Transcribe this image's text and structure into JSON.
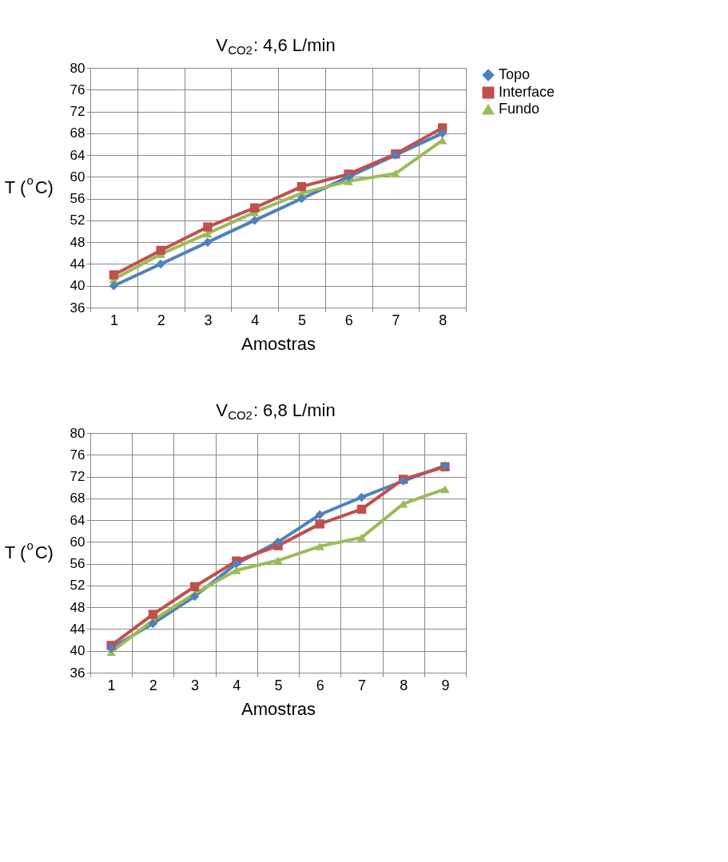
{
  "chart_data": [
    {
      "type": "line",
      "title": "V$_{CO2}$: 4,6 L/min",
      "xlabel": "Amostras",
      "ylabel": "T ($^{o}$C)",
      "categories": [
        "1",
        "2",
        "3",
        "4",
        "5",
        "6",
        "7",
        "8"
      ],
      "ylim": [
        36,
        80
      ],
      "yticks": [
        36,
        40,
        44,
        48,
        52,
        56,
        60,
        64,
        68,
        72,
        76,
        80
      ],
      "grid": true,
      "legend": "right",
      "line_style": "solid",
      "series": [
        {
          "name": "Topo",
          "color": "#4f81bd",
          "marker": "diamond",
          "values": [
            40,
            44,
            48,
            52,
            56,
            60,
            64,
            68
          ]
        },
        {
          "name": "Interface",
          "color": "#c0504d",
          "marker": "square",
          "values": [
            42,
            46.5,
            50.8,
            54.3,
            58.2,
            60.5,
            64.2,
            69
          ]
        },
        {
          "name": "Fundo",
          "color": "#9bbb59",
          "marker": "triangle",
          "values": [
            41.2,
            45.8,
            49.6,
            53.5,
            57,
            59.2,
            60.6,
            66.7
          ]
        }
      ]
    },
    {
      "type": "line",
      "title": "V$_{CO2}$: 6,8 L/min",
      "xlabel": "Amostras",
      "ylabel": "T ($^{o}$C)",
      "categories": [
        "1",
        "2",
        "3",
        "4",
        "5",
        "6",
        "7",
        "8",
        "9"
      ],
      "ylim": [
        36,
        80
      ],
      "yticks": [
        36,
        40,
        44,
        48,
        52,
        56,
        60,
        64,
        68,
        72,
        76,
        80
      ],
      "grid": true,
      "legend": "right",
      "line_style": "solid",
      "series": [
        {
          "name": "Topo",
          "color": "#4f81bd",
          "marker": "diamond",
          "values": [
            40.5,
            45,
            50,
            56,
            60,
            65,
            68.2,
            71.2,
            74
          ]
        },
        {
          "name": "Interface",
          "color": "#c0504d",
          "marker": "square",
          "values": [
            41,
            46.7,
            51.8,
            56.5,
            59.3,
            63.3,
            66,
            71.5,
            73.8
          ]
        },
        {
          "name": "Fundo",
          "color": "#9bbb59",
          "marker": "triangle",
          "values": [
            39.8,
            45.6,
            50.5,
            54.8,
            56.6,
            59.2,
            60.8,
            67,
            69.7
          ]
        }
      ]
    }
  ]
}
